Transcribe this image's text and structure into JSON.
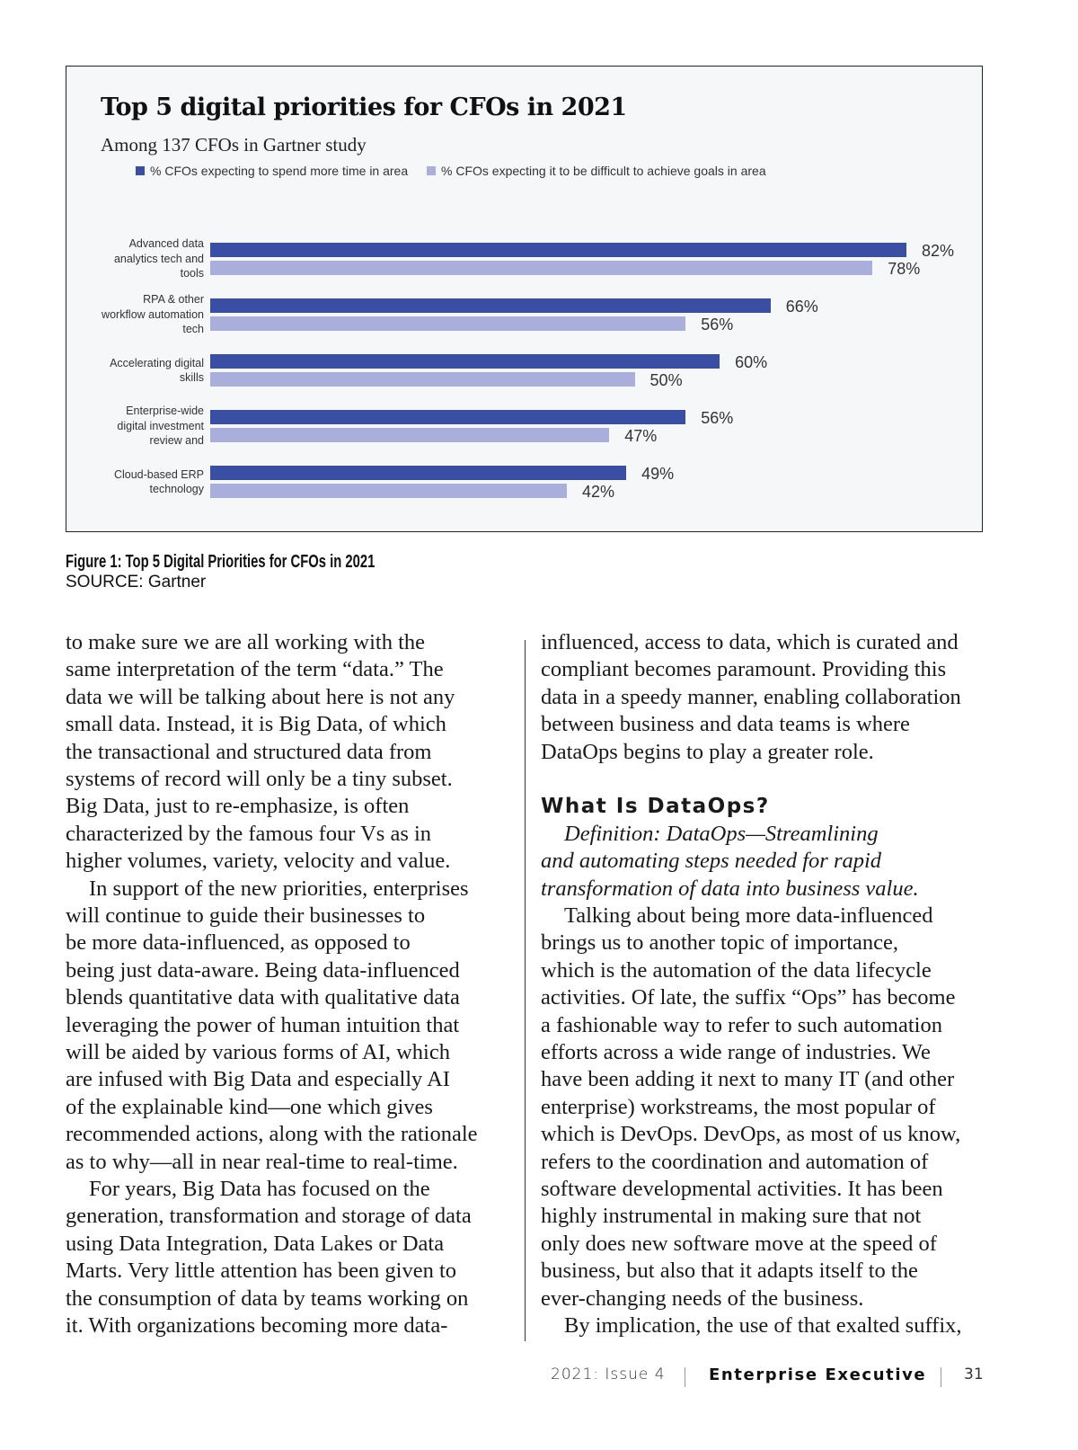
{
  "chart_data": {
    "type": "bar",
    "orientation": "horizontal",
    "title": "Top 5 digital priorities for CFOs in 2021",
    "subtitle": "Among 137 CFOs in Gartner study",
    "categories": [
      [
        "Advanced data",
        "analytics tech and",
        "tools"
      ],
      [
        "RPA & other",
        "workflow automation",
        "tech"
      ],
      [
        "Accelerating digital",
        "skills"
      ],
      [
        "Enterprise-wide",
        "digital investment",
        "review and"
      ],
      [
        "Cloud-based ERP",
        "technology"
      ]
    ],
    "series": [
      {
        "name": "% CFOs expecting to spend more time in area",
        "color": "#3a4ea3",
        "values": [
          82,
          66,
          60,
          56,
          49
        ],
        "labels": [
          "82%",
          "66%",
          "60%",
          "56%",
          "49%"
        ]
      },
      {
        "name": "% CFOs expecting it to be difficult to achieve goals in area",
        "color": "#a9aedb",
        "values": [
          78,
          56,
          50,
          47,
          42
        ],
        "labels": [
          "78%",
          "56%",
          "50%",
          "47%",
          "42%"
        ]
      }
    ],
    "xlim": [
      0,
      82
    ],
    "grid": false,
    "legend": "top-left"
  },
  "caption": {
    "title": "Figure 1: Top 5 Digital Priorities for CFOs in 2021",
    "source": "SOURCE: Gartner"
  },
  "article": {
    "left_column": [
      "to make sure we are all working with the",
      "same interpretation of the term “data.” The",
      "data we will be talking about here is not any",
      "small data. Instead, it is Big Data, of which",
      "the transactional and structured data from",
      "systems of record will only be a tiny subset.",
      "Big Data, just to re-emphasize, is often",
      "characterized by the famous four Vs as in",
      "higher volumes, variety, velocity and value.",
      "In support of the new priorities, enterprises",
      "will continue to guide their businesses to",
      "be more data-influenced, as opposed to",
      "being just data-aware. Being data-influenced",
      "blends quantitative data with qualitative data",
      "leveraging the power of human intuition that",
      "will be aided by various forms of AI, which",
      "are infused with Big Data and especially AI",
      "of the explainable kind—one which gives",
      "recommended actions, along with the rationale",
      "as to why—all in near real-time to real-time.",
      "For years, Big Data has focused on the",
      "generation, transformation and storage of data",
      "using Data Integration, Data Lakes or Data",
      "Marts. Very little attention has been given to",
      "the consumption of data by teams working on",
      "it. With organizations becoming more data-"
    ],
    "right_column_intro": [
      "influenced, access to data, which is curated and",
      "compliant becomes paramount. Providing this",
      "data in a speedy manner, enabling collaboration",
      "between business and data teams is where",
      "DataOps begins to play a greater role."
    ],
    "heading": "What Is DataOps?",
    "definition": [
      "Definition: DataOps—Streamlining",
      "and automating steps needed for rapid",
      "transformation of data into business value."
    ],
    "right_column_body": [
      "Talking about being more data-influenced",
      "brings us to another topic of importance,",
      "which is the automation of the data lifecycle",
      "activities. Of late, the suffix “Ops” has become",
      "a fashionable way to refer to such automation",
      "efforts across a wide range of industries. We",
      "have been adding it next to many IT (and other",
      "enterprise) workstreams, the most popular of",
      "which is DevOps. DevOps, as most of us know,",
      "refers to the coordination and automation of",
      "software developmental activities. It has been",
      "highly instrumental in making sure that not",
      "only does new software move at the speed of",
      "business, but also that it adapts itself to the",
      "ever-changing needs of the business.",
      "By implication, the use of that exalted suffix,"
    ]
  },
  "footer": {
    "issue": "2021: Issue 4",
    "magazine": "Enterprise Executive",
    "page": "31"
  }
}
